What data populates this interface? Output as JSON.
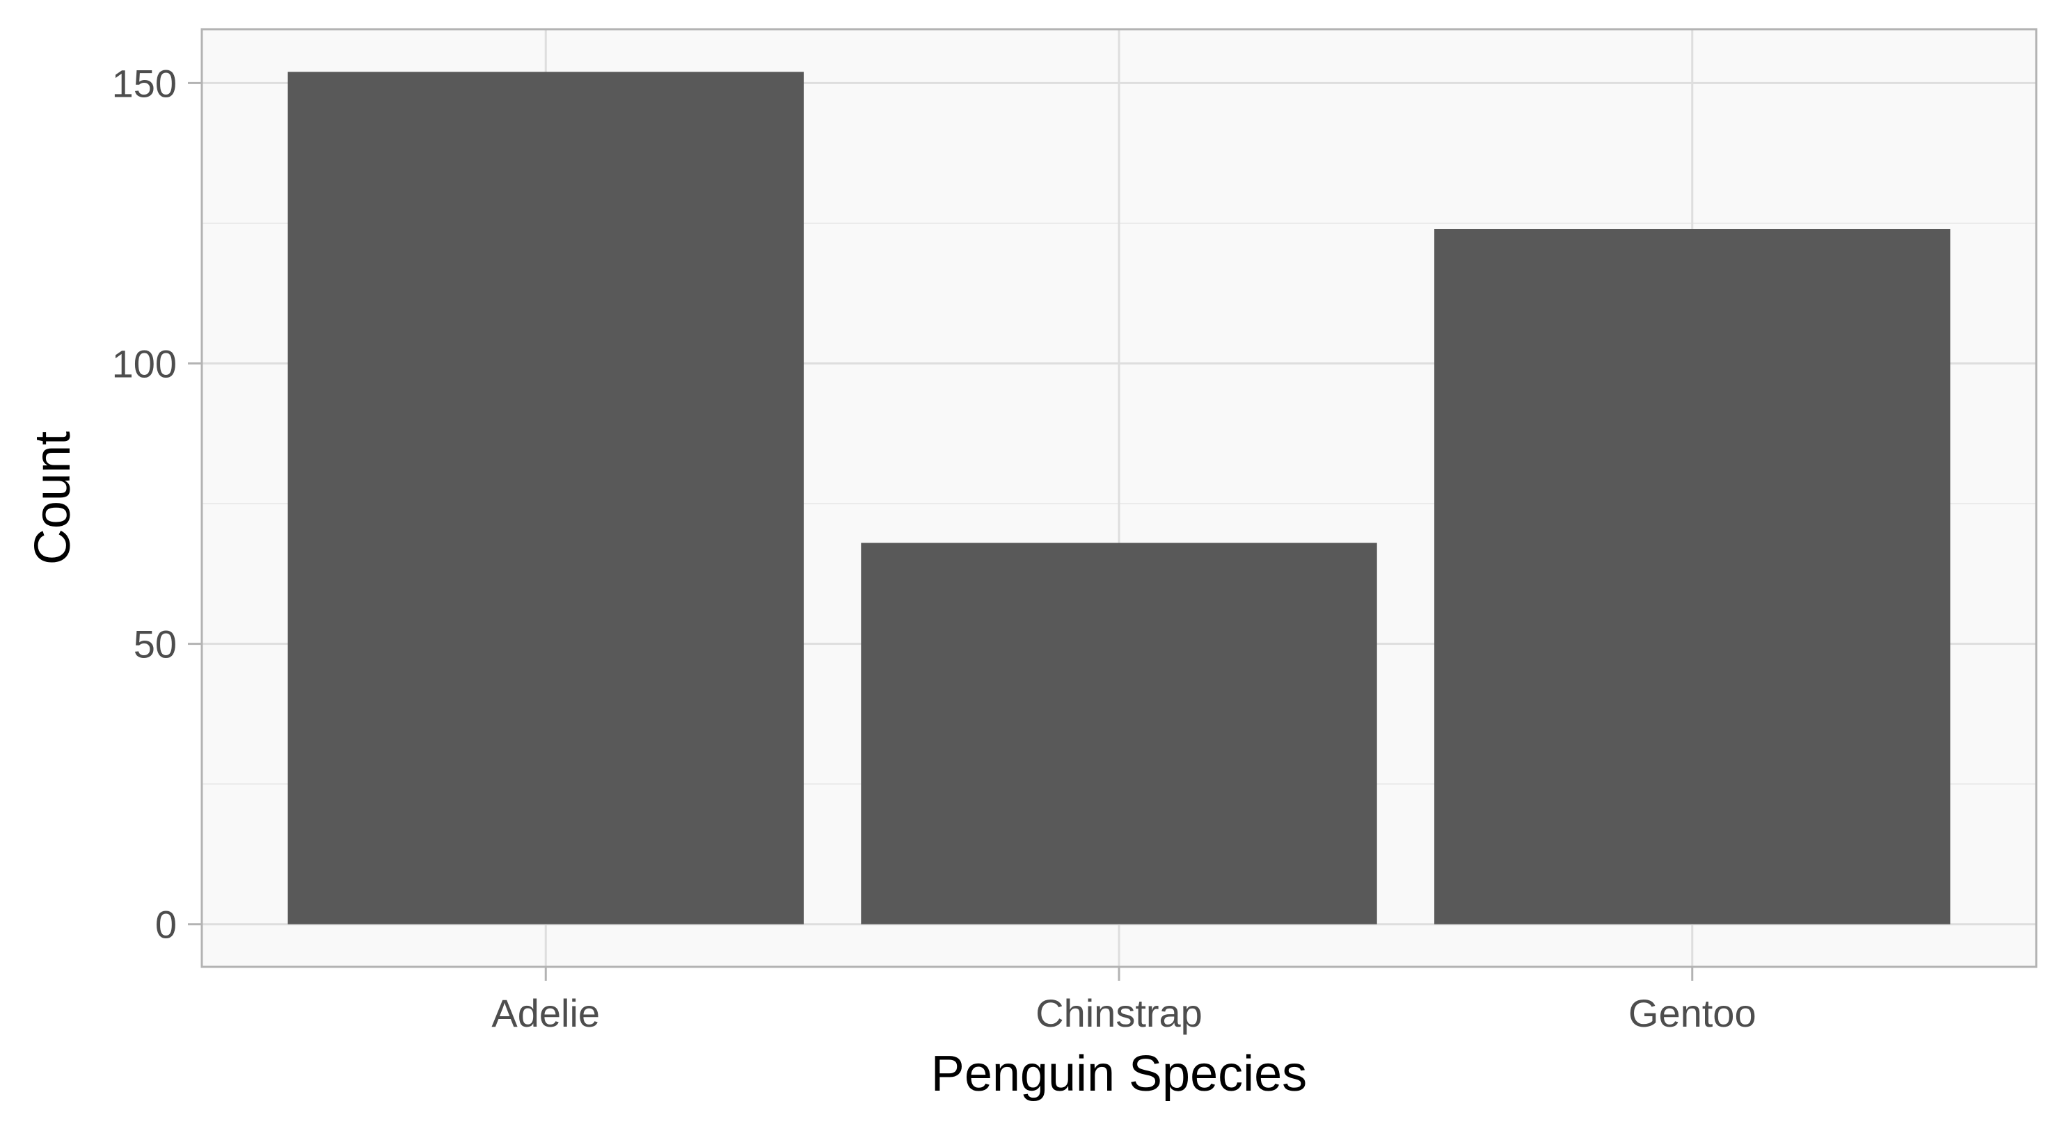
{
  "colors": {
    "panel_background": "#f9f9f9",
    "panel_border": "#b3b3b3",
    "grid_major": "#dedede",
    "grid_minor": "#ebebeb",
    "tick_mark": "#b3b3b3",
    "bar_fill": "#595959"
  },
  "chart_data": {
    "type": "bar",
    "categories": [
      "Adelie",
      "Chinstrap",
      "Gentoo"
    ],
    "values": [
      152,
      68,
      124
    ],
    "xlabel": "Penguin Species",
    "ylabel": "Count",
    "ylim": [
      -7.6,
      159.6
    ],
    "yticks": [
      0,
      50,
      100,
      150
    ],
    "ytick_labels": [
      "0",
      "50",
      "100",
      "150"
    ],
    "grid": true,
    "legend": "none"
  }
}
